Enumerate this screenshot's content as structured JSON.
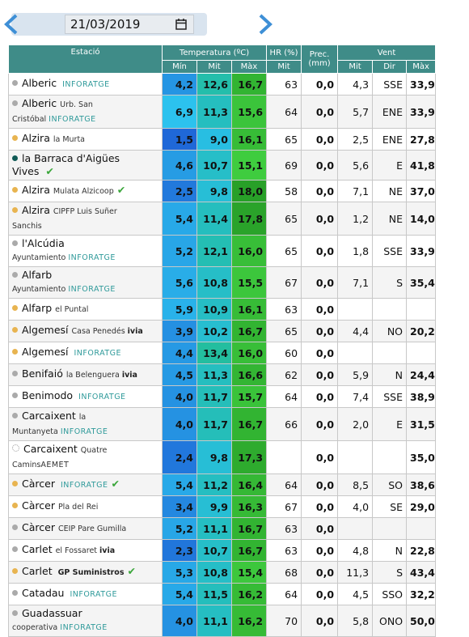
{
  "date": "21/03/2019",
  "table": {
    "headers": {
      "station": "Estació",
      "temp": "Temperatura (ºC)",
      "hr": "HR (%)",
      "prec": "Prec. (mm)",
      "wind": "Vent",
      "sub": [
        "Mín",
        "Mit",
        "Màx",
        "Mit",
        "Mit",
        "Dir",
        "Màx"
      ]
    },
    "rows": [
      {
        "dot": "#aaaaaa",
        "station": "Alberic",
        "place": null,
        "badge": "INFORATGE",
        "check": false,
        "cells": [
          "4,2",
          "12,6",
          "16,7",
          "63",
          "0,0",
          "4,3",
          "SSE",
          "33,9"
        ]
      },
      {
        "dot": "#aaaaaa",
        "station": "Alberic",
        "place": "Urb. San Cristóbal",
        "badge": "INFORATGE",
        "check": false,
        "cells": [
          "6,9",
          "11,3",
          "15,6",
          "64",
          "0,0",
          "5,7",
          "ENE",
          "33,9"
        ]
      },
      {
        "dot": "#e8b450",
        "station": "Alzira",
        "place": "la Murta",
        "badge": null,
        "check": false,
        "cells": [
          "1,5",
          "9,0",
          "16,1",
          "65",
          "0,0",
          "2,5",
          "ENE",
          "27,8"
        ]
      },
      {
        "dot": "#0f5a55",
        "station": "la Barraca d'Aigües Vives",
        "place": null,
        "badge": null,
        "check": true,
        "cells": [
          "4,6",
          "10,7",
          "15,1",
          "69",
          "0,0",
          "5,6",
          "E",
          "41,8"
        ]
      },
      {
        "dot": "#e8b450",
        "station": "Alzira",
        "place": "Mulata Alzicoop",
        "badge": null,
        "check": true,
        "cells": [
          "2,5",
          "9,8",
          "18,0",
          "58",
          "0,0",
          "7,1",
          "NE",
          "37,0"
        ]
      },
      {
        "dot": "#e8b450",
        "station": "Alzira",
        "place": "CIPFP Luis Suñer Sanchis",
        "badge": null,
        "check": false,
        "cells": [
          "5,4",
          "11,4",
          "17,8",
          "65",
          "0,0",
          "1,2",
          "NE",
          "14,0"
        ]
      },
      {
        "dot": "#aaaaaa",
        "station": "l'Alcúdia",
        "place": "Ayuntamiento",
        "badge": "INFORATGE",
        "check": false,
        "cells": [
          "5,2",
          "12,1",
          "16,0",
          "65",
          "0,0",
          "1,8",
          "SSE",
          "33,9"
        ]
      },
      {
        "dot": "#aaaaaa",
        "station": "Alfarb",
        "place": "Ayuntamiento",
        "badge": "INFORATGE",
        "check": false,
        "cells": [
          "5,6",
          "10,8",
          "15,5",
          "67",
          "0,0",
          "7,1",
          "S",
          "35,4"
        ]
      },
      {
        "dot": "#e8b450",
        "station": "Alfarp",
        "place": "el Puntal",
        "badge": null,
        "check": false,
        "cells": [
          "5,9",
          "10,9",
          "16,1",
          "63",
          "0,0",
          null,
          null,
          null
        ]
      },
      {
        "dot": "#e8b450",
        "station": "Algemesí",
        "place": "Casa Penedés",
        "badge": "ivia",
        "check": false,
        "cells": [
          "3,9",
          "10,2",
          "16,7",
          "65",
          "0,0",
          "4,4",
          "NO",
          "20,2"
        ]
      },
      {
        "dot": "#e8b450",
        "station": "Algemesí",
        "place": null,
        "badge": "INFORATGE",
        "check": false,
        "cells": [
          "4,4",
          "13,4",
          "16,0",
          "60",
          "0,0",
          null,
          null,
          null
        ]
      },
      {
        "dot": "#aaaaaa",
        "station": "Benifaió",
        "place": "la Belenguera",
        "badge": "ivia",
        "check": false,
        "cells": [
          "4,5",
          "11,3",
          "16,6",
          "62",
          "0,0",
          "5,9",
          "N",
          "24,4"
        ]
      },
      {
        "dot": "#aaaaaa",
        "station": "Benimodo",
        "place": null,
        "badge": "INFORATGE",
        "check": false,
        "cells": [
          "4,0",
          "11,7",
          "15,7",
          "64",
          "0,0",
          "7,4",
          "SSE",
          "38,9"
        ]
      },
      {
        "dot": "#aaaaaa",
        "station": "Carcaixent",
        "place": "la Muntanyeta",
        "badge": "INFORATGE",
        "check": false,
        "cells": [
          "4,0",
          "11,7",
          "16,7",
          "66",
          "0,0",
          "2,0",
          "E",
          "31,5"
        ]
      },
      {
        "dot": "#ffffff",
        "station": "Carcaixent",
        "place": "Quatre Camins",
        "badge": "AEMET",
        "check": false,
        "cells": [
          "2,4",
          "9,8",
          "17,3",
          null,
          "0,0",
          null,
          null,
          "35,0"
        ]
      },
      {
        "dot": "#e8b450",
        "station": "Càrcer",
        "place": null,
        "badge": "INFORATGE",
        "check": true,
        "cells": [
          "5,4",
          "11,2",
          "16,4",
          "64",
          "0,0",
          "8,5",
          "SO",
          "38,6"
        ]
      },
      {
        "dot": "#e8b450",
        "station": "Càrcer",
        "place": "Pla del Rei",
        "badge": null,
        "check": false,
        "cells": [
          "3,4",
          "9,9",
          "16,3",
          "67",
          "0,0",
          "4,0",
          "SE",
          "29,0"
        ]
      },
      {
        "dot": "#aaaaaa",
        "station": "Càrcer",
        "place": "CEIP Pare Gumilla",
        "badge": null,
        "check": false,
        "cells": [
          "5,2",
          "11,1",
          "16,7",
          "63",
          "0,0",
          null,
          null,
          null
        ]
      },
      {
        "dot": "#aaaaaa",
        "station": "Carlet",
        "place": "el Fossaret",
        "badge": "ivia",
        "check": false,
        "cells": [
          "2,3",
          "10,7",
          "16,7",
          "63",
          "0,0",
          "4,8",
          "N",
          "22,8"
        ]
      },
      {
        "dot": "#e8b450",
        "station": "Carlet",
        "place": null,
        "badge": "GP Suministros",
        "check": true,
        "cells": [
          "5,3",
          "10,8",
          "15,4",
          "68",
          "0,0",
          "11,3",
          "S",
          "43,4"
        ]
      },
      {
        "dot": "#aaaaaa",
        "station": "Catadau",
        "place": null,
        "badge": "INFORATGE",
        "check": false,
        "cells": [
          "5,4",
          "11,5",
          "16,2",
          "64",
          "0,0",
          "4,5",
          "SSO",
          "32,2"
        ]
      },
      {
        "dot": "#aaaaaa",
        "station": "Guadassuar",
        "place": "cooperativa",
        "badge": "INFORATGE",
        "check": false,
        "cells": [
          "4,0",
          "11,1",
          "16,2",
          "70",
          "0,0",
          "5,8",
          "ONO",
          "50,0"
        ]
      }
    ]
  }
}
